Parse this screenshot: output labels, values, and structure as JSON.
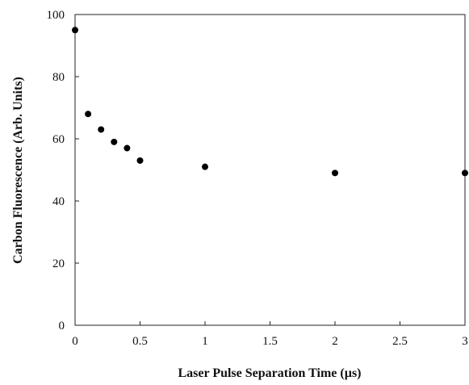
{
  "chart_data": {
    "type": "scatter",
    "title": "",
    "xlabel": "Laser Pulse Separation Time  (µs)",
    "ylabel": "Carbon Fluorescence (Arb. Units)",
    "xlim": [
      0,
      3
    ],
    "ylim": [
      0,
      100
    ],
    "x_ticks": [
      0,
      0.5,
      1,
      1.5,
      2,
      2.5,
      3
    ],
    "x_tick_labels": [
      "0",
      "0.5",
      "1",
      "1.5",
      "2",
      "2.5",
      "3"
    ],
    "y_ticks": [
      0,
      20,
      40,
      60,
      80,
      100
    ],
    "y_tick_labels": [
      "0",
      "20",
      "40",
      "60",
      "80",
      "100"
    ],
    "grid": false,
    "legend": "none",
    "marker_color": "#000000",
    "series": [
      {
        "x": [
          0,
          0.1,
          0.2,
          0.3,
          0.4,
          0.5,
          1,
          2,
          3
        ],
        "y": [
          95,
          68,
          63,
          59,
          57,
          53,
          51,
          49,
          49
        ]
      }
    ]
  }
}
